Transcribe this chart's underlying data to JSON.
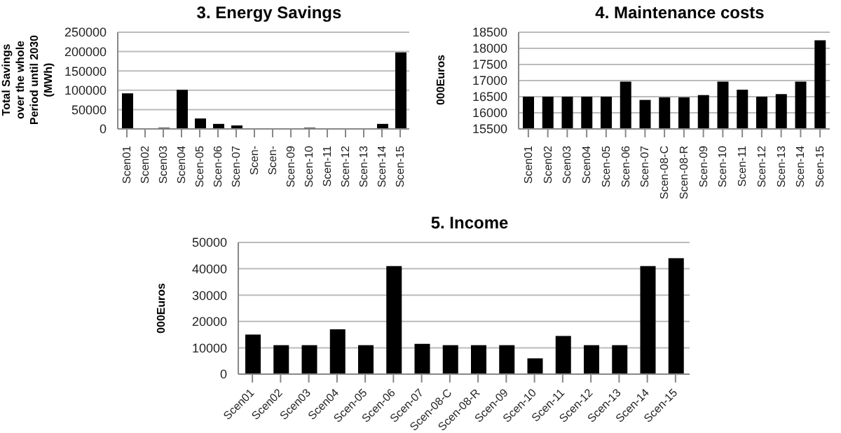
{
  "chart_data": [
    {
      "type": "bar",
      "title": "3. Energy Savings",
      "ylabel": "Total Savings over the whole Period until 2030 (MWh)",
      "categories": [
        "Scen01",
        "Scen02",
        "Scen03",
        "Scen04",
        "Scen-05",
        "Scen-06",
        "Scen-07",
        "Scen-",
        "Scen-",
        "Scen-09",
        "Scen-10",
        "Scen-11",
        "Scen-12",
        "Scen-13",
        "Scen-14",
        "Scen-15"
      ],
      "values": [
        92000,
        0,
        3000,
        101000,
        27000,
        13000,
        9000,
        0,
        0,
        0,
        3000,
        0,
        0,
        0,
        13000,
        198000
      ],
      "color": "#000000",
      "ylim": [
        0,
        250000
      ],
      "yticks": [
        0,
        50000,
        100000,
        150000,
        200000,
        250000
      ],
      "grid": "y"
    },
    {
      "type": "bar",
      "title": "4. Maintenance costs",
      "ylabel": "000Euros",
      "categories": [
        "Scen01",
        "Scen02",
        "Scen03",
        "Scen04",
        "Scen-05",
        "Scen-06",
        "Scen-07",
        "Scen-08-C",
        "Scen-08-R",
        "Scen-09",
        "Scen-10",
        "Scen-11",
        "Scen-12",
        "Scen-13",
        "Scen-14",
        "Scen-15"
      ],
      "values": [
        16500,
        16500,
        16500,
        16500,
        16500,
        16970,
        16400,
        16480,
        16480,
        16550,
        16970,
        16720,
        16500,
        16580,
        16970,
        18250
      ],
      "color": "#000000",
      "ylim": [
        15500,
        18500
      ],
      "yticks": [
        15500,
        16000,
        16500,
        17000,
        17500,
        18000,
        18500
      ],
      "grid": "y"
    },
    {
      "type": "bar",
      "title": "5. Income",
      "ylabel": "000Euros",
      "categories": [
        "Scen01",
        "Scen02",
        "Scen03",
        "Scen04",
        "Scen-05",
        "Scen-06",
        "Scen-07",
        "Scen-08-C",
        "Scen-08-R",
        "Scen-09",
        "Scen-10",
        "Scen-11",
        "Scen-12",
        "Scen-13",
        "Scen-14",
        "Scen-15"
      ],
      "values": [
        15000,
        11000,
        11000,
        17000,
        11000,
        41000,
        11500,
        11000,
        11000,
        11000,
        6000,
        14500,
        11000,
        11000,
        41000,
        44000
      ],
      "color": "#000000",
      "ylim": [
        0,
        50000
      ],
      "yticks": [
        0,
        10000,
        20000,
        30000,
        40000,
        50000
      ],
      "grid": "y"
    }
  ]
}
